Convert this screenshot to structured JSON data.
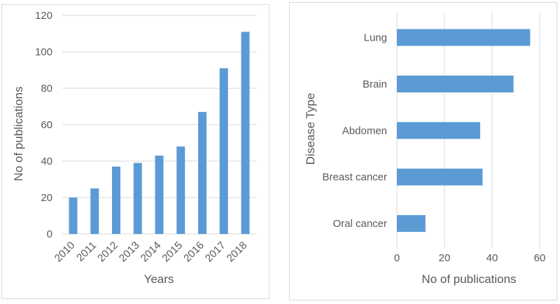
{
  "chart_data": [
    {
      "type": "bar",
      "orientation": "vertical",
      "title": "",
      "xlabel": "Years",
      "ylabel": "No of publications",
      "categories": [
        "2010",
        "2011",
        "2012",
        "2013",
        "2014",
        "2015",
        "2016",
        "2017",
        "2018"
      ],
      "values": [
        20,
        25,
        37,
        39,
        43,
        48,
        67,
        91,
        111
      ],
      "ylim": [
        0,
        120
      ],
      "yticks": [
        0,
        20,
        40,
        60,
        80,
        100,
        120
      ],
      "grid": "horizontal",
      "legend": "none",
      "category_label_rotation": 45
    },
    {
      "type": "bar",
      "orientation": "horizontal",
      "title": "",
      "xlabel": "No of publications",
      "ylabel": "Disease Type",
      "categories": [
        "Lung",
        "Brain",
        "Abdomen",
        "Breast cancer",
        "Oral cancer"
      ],
      "values": [
        56,
        49,
        35,
        36,
        12
      ],
      "xlim": [
        0,
        60
      ],
      "xticks": [
        0,
        20,
        40,
        60
      ],
      "grid": "vertical",
      "legend": "none",
      "category_label_rotation": 0
    }
  ],
  "colors": {
    "bar": "#5B9BD5",
    "gridline": "#D9D9D9",
    "axis_line": "#D9D9D9",
    "axis_text": "#595959",
    "panel_border": "#D9D9D9",
    "background": "#FFFFFF"
  }
}
